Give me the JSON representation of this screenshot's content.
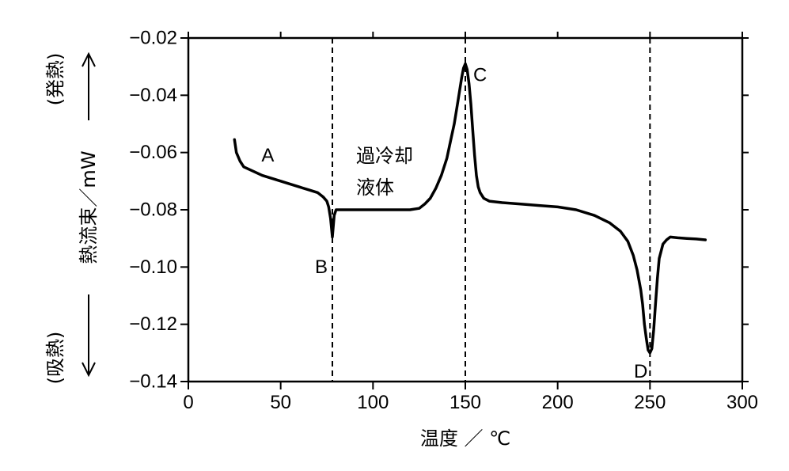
{
  "chart_data": {
    "type": "line",
    "xlabel": "温度 ／ ℃",
    "ylabel": "熱流束／mW",
    "ylabel_top": "(発熱)",
    "ylabel_bottom": "(吸熱)",
    "xlim": [
      0,
      300
    ],
    "ylim": [
      -0.14,
      -0.02
    ],
    "xticks": [
      0,
      50,
      100,
      150,
      200,
      250,
      300
    ],
    "xtick_labels": [
      "0",
      "50",
      "100",
      "150",
      "200",
      "250",
      "300"
    ],
    "yticks": [
      -0.02,
      -0.04,
      -0.06,
      -0.08,
      -0.1,
      -0.12,
      -0.14
    ],
    "ytick_labels": [
      "−0.02",
      "−0.04",
      "−0.06",
      "−0.08",
      "−0.10",
      "−0.12",
      "−0.14"
    ],
    "grid": false,
    "reference_lines_x": [
      78,
      150,
      250
    ],
    "series": [
      {
        "x": [
          25,
          26,
          28,
          30,
          35,
          40,
          45,
          50,
          55,
          60,
          65,
          70,
          73,
          75,
          76,
          77,
          78,
          79,
          80,
          82,
          85,
          90,
          100,
          110,
          120,
          125,
          128,
          131,
          134,
          137,
          140,
          142,
          144,
          146,
          147,
          148,
          149,
          150,
          151,
          152,
          153,
          154,
          155,
          156,
          157,
          158,
          160,
          163,
          170,
          180,
          190,
          200,
          210,
          220,
          228,
          234,
          238,
          241,
          243,
          245,
          246,
          247,
          248,
          249,
          250,
          251,
          252,
          253,
          254,
          255,
          257,
          259,
          261,
          265,
          270,
          275,
          280
        ],
        "y": [
          -0.0555,
          -0.06,
          -0.063,
          -0.065,
          -0.0665,
          -0.068,
          -0.069,
          -0.07,
          -0.071,
          -0.072,
          -0.073,
          -0.074,
          -0.0755,
          -0.077,
          -0.079,
          -0.083,
          -0.0895,
          -0.082,
          -0.08,
          -0.08,
          -0.08,
          -0.08,
          -0.08,
          -0.08,
          -0.08,
          -0.0795,
          -0.078,
          -0.076,
          -0.0725,
          -0.068,
          -0.062,
          -0.056,
          -0.05,
          -0.042,
          -0.038,
          -0.034,
          -0.0305,
          -0.029,
          -0.031,
          -0.036,
          -0.043,
          -0.052,
          -0.061,
          -0.068,
          -0.072,
          -0.074,
          -0.076,
          -0.077,
          -0.0775,
          -0.078,
          -0.0785,
          -0.079,
          -0.08,
          -0.082,
          -0.0845,
          -0.0875,
          -0.091,
          -0.096,
          -0.101,
          -0.108,
          -0.113,
          -0.12,
          -0.125,
          -0.129,
          -0.13,
          -0.1285,
          -0.122,
          -0.113,
          -0.104,
          -0.097,
          -0.092,
          -0.0905,
          -0.0895,
          -0.0898,
          -0.09,
          -0.0902,
          -0.0905
        ]
      }
    ],
    "annotations": [
      {
        "text": "A",
        "x": 43,
        "y": -0.061
      },
      {
        "text": "B",
        "x": 72,
        "y": -0.1
      },
      {
        "text": "C",
        "x": 158,
        "y": -0.033
      },
      {
        "text": "D",
        "x": 245,
        "y": -0.1365
      }
    ],
    "annotation_region": [
      "過冷却",
      "液体"
    ]
  }
}
